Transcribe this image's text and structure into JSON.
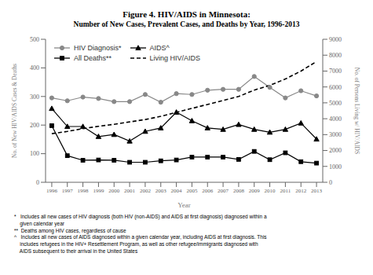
{
  "chart_data": {
    "type": "line",
    "title": "Figure 4. HIV/AIDS in Minnesota:",
    "subtitle": "Number of New Cases, Prevalent Cases, and Deaths by Year, 1996-2013",
    "x": [
      1996,
      1997,
      1998,
      1999,
      2000,
      2001,
      2002,
      2003,
      2004,
      2005,
      2006,
      2007,
      2008,
      2009,
      2010,
      2011,
      2012,
      2013
    ],
    "xlim": [
      1995.6,
      2013.4
    ],
    "xticks": [
      1996,
      1997,
      1998,
      1999,
      2000,
      2001,
      2002,
      2003,
      2004,
      2005,
      2006,
      2007,
      2008,
      2009,
      2010,
      2011,
      2012,
      2013
    ],
    "xlabel": "Year",
    "ylabel": "No. of New HIV/AIDS Cases & Deaths",
    "y2label": "No. of Persons Living w/ HIV/AIDS",
    "ylim": [
      0,
      500
    ],
    "yticks": [
      0,
      100,
      200,
      300,
      400,
      500
    ],
    "y2lim": [
      0,
      9000
    ],
    "y2ticks": [
      0,
      1000,
      2000,
      3000,
      4000,
      5000,
      6000,
      7000,
      8000,
      9000
    ],
    "grid": false,
    "legend": "upper left",
    "series": [
      {
        "name": "HIV Diagnosis*",
        "color": "#888888",
        "marker": "circle",
        "line_style": "solid",
        "values": [
          295,
          285,
          298,
          293,
          282,
          282,
          307,
          280,
          310,
          307,
          322,
          325,
          325,
          370,
          332,
          295,
          320,
          302
        ]
      },
      {
        "name": "AIDS^",
        "color": "#000000",
        "marker": "triangle",
        "line_style": "solid",
        "values": [
          258,
          195,
          195,
          160,
          167,
          144,
          178,
          190,
          245,
          215,
          190,
          185,
          202,
          185,
          175,
          185,
          207,
          151
        ]
      },
      {
        "name": "All Deaths**",
        "color": "#000000",
        "marker": "square",
        "line_style": "solid",
        "values": [
          198,
          93,
          77,
          78,
          77,
          70,
          70,
          75,
          78,
          88,
          88,
          88,
          80,
          108,
          79,
          103,
          72,
          67
        ]
      },
      {
        "name": "Living HIV/AIDS",
        "color": "#000000",
        "marker": "none",
        "line_style": "dashed",
        "axis": "y2",
        "values": [
          3060,
          3200,
          3380,
          3520,
          3650,
          3800,
          3950,
          4150,
          4400,
          4650,
          4900,
          5150,
          5400,
          5800,
          6100,
          6500,
          7000,
          7600
        ]
      }
    ],
    "annotations": [
      "*   Includes all new cases of HIV diagnosis (both HIV (non-AIDS) and AIDS at first diagnosis) diagnosed within a\n    given calendar year",
      "**  Deaths among HIV cases, regardless of cause",
      "^   Includes all new cases of AIDS diagnosed within a given calendar year, including AIDS at first diagnosis. This\n    includes refugees in the HIV+ Resettlement Program, as well as other refugee/immigrants diagnosed with\n    AIDS subsequent to their arrival in the United States"
    ]
  }
}
